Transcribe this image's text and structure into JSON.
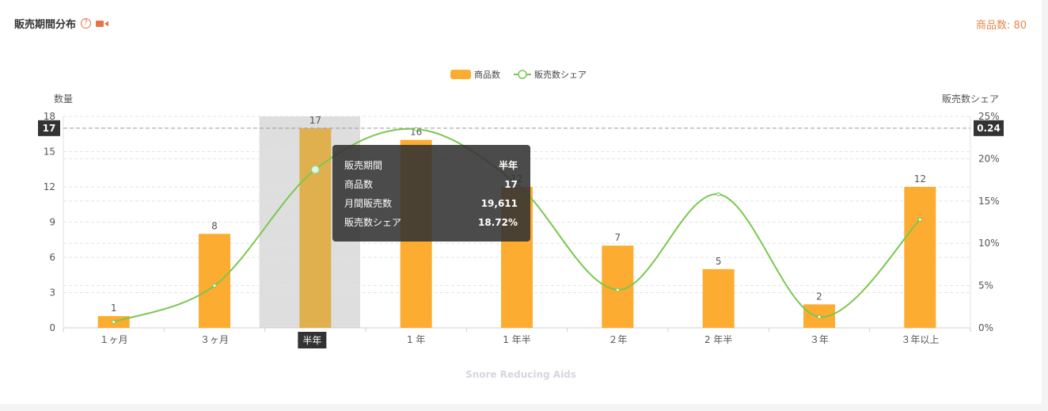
{
  "header": {
    "title": "販売期間分布",
    "help": "?",
    "count_label": "商品数: 80"
  },
  "colors": {
    "bar": "#fcac30",
    "bar_highlight": "#e0b04e",
    "line": "#7ac74f",
    "accent": "#e8874a"
  },
  "chart_data": {
    "type": "bar",
    "categories": [
      "１ヶ月",
      "３ヶ月",
      "半年",
      "1 年",
      "1 年半",
      "２年",
      "2 年半",
      "３年",
      "３年以上"
    ],
    "series": [
      {
        "name": "商品数",
        "type": "bar",
        "axis": "left",
        "values": [
          1,
          8,
          17,
          16,
          12,
          7,
          5,
          2,
          12
        ]
      },
      {
        "name": "販売数シェア",
        "type": "line",
        "axis": "right",
        "smooth": true,
        "values": [
          0.7,
          5.0,
          18.72,
          23.5,
          17.0,
          4.5,
          15.8,
          1.3,
          12.8
        ]
      }
    ],
    "ylabel_left": "数量",
    "ylabel_right": "販売数シェア",
    "ylim_left": [
      0,
      18
    ],
    "yticks_left": [
      "0",
      "3",
      "6",
      "9",
      "12",
      "15",
      "18"
    ],
    "ylim_right": [
      0,
      25
    ],
    "yticks_right": [
      "0%",
      "5%",
      "10%",
      "15%",
      "20%",
      "25%"
    ],
    "legend_position": "top-center",
    "grid": true,
    "pointer": {
      "category_index": 2,
      "left_value_label": "17",
      "right_value_label": "0.24",
      "right_value": 24
    },
    "tooltip": {
      "rows": [
        {
          "label": "販売期間",
          "value": "半年"
        },
        {
          "label": "商品数",
          "value": "17"
        },
        {
          "label": "月間販売数",
          "value": "19,611"
        },
        {
          "label": "販売数シェア",
          "value": "18.72%"
        }
      ]
    },
    "watermark": "Snore Reducing Aids"
  }
}
